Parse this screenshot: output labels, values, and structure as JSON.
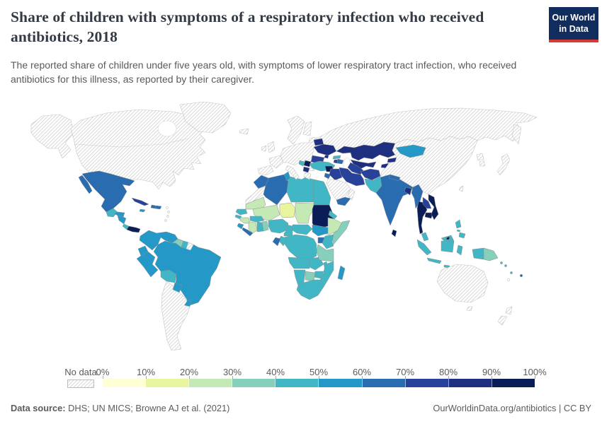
{
  "header": {
    "title": "Share of children with symptoms of a respiratory infection who received antibiotics, 2018",
    "subtitle": "The reported share of children under five years old, with symptoms of lower respiratory tract infection, who received antibiotics for this illness, as reported by their caregiver."
  },
  "logo": {
    "line1": "Our World",
    "line2": "in Data",
    "bg_color": "#102d5e",
    "stripe_color": "#d73a34"
  },
  "legend": {
    "no_data_label": "No data",
    "tick_labels": [
      "0%",
      "10%",
      "20%",
      "30%",
      "40%",
      "50%",
      "60%",
      "70%",
      "80%",
      "90%",
      "100%"
    ]
  },
  "footer": {
    "source_label": "Data source:",
    "source_text": " DHS; UN MICS; Browne AJ et al. (2021)",
    "right_text": "OurWorldinData.org/antibiotics | CC BY"
  },
  "map": {
    "scale_colors": [
      "#ffffd6",
      "#e8f59e",
      "#c5e9b4",
      "#86cfbb",
      "#41b6c4",
      "#2498c7",
      "#2a6cb0",
      "#28419b",
      "#1d2f7e",
      "#0b1d57"
    ],
    "hatch_color": "#d2d2d2",
    "border_color": "#8f8f8f"
  },
  "chart_data": {
    "type": "heatmap",
    "map_type": "world-choropleth",
    "title": "Share of children with symptoms of a respiratory infection who received antibiotics, 2018",
    "unit": "%",
    "bins": [
      "0-10%",
      "10-20%",
      "20-30%",
      "30-40%",
      "40-50%",
      "50-60%",
      "60-70%",
      "70-80%",
      "80-90%",
      "90-100%"
    ],
    "bin_note": "bin is an index into bins / scale_colors; null = No data (hatched)",
    "countries": [
      {
        "id": "mexico",
        "name": "Mexico",
        "bin": 6
      },
      {
        "id": "guatemala",
        "name": "Guatemala",
        "bin": 4
      },
      {
        "id": "honduras",
        "name": "Honduras",
        "bin": 5
      },
      {
        "id": "nicaragua",
        "name": "Nicaragua",
        "bin": 5
      },
      {
        "id": "costa-rica",
        "name": "Costa Rica",
        "bin": 4
      },
      {
        "id": "panama",
        "name": "Panama",
        "bin": 9
      },
      {
        "id": "cuba",
        "name": "Cuba",
        "bin": 7
      },
      {
        "id": "jamaica",
        "name": "Jamaica",
        "bin": 5
      },
      {
        "id": "haiti",
        "name": "Haiti",
        "bin": 6
      },
      {
        "id": "dominican-republic",
        "name": "Dominican Republic",
        "bin": 6
      },
      {
        "id": "colombia",
        "name": "Colombia",
        "bin": 5
      },
      {
        "id": "venezuela",
        "name": "Venezuela",
        "bin": 5
      },
      {
        "id": "guyana",
        "name": "Guyana",
        "bin": 3
      },
      {
        "id": "suriname",
        "name": "Suriname",
        "bin": 4
      },
      {
        "id": "ecuador",
        "name": "Ecuador",
        "bin": 5
      },
      {
        "id": "peru",
        "name": "Peru",
        "bin": 5
      },
      {
        "id": "brazil",
        "name": "Brazil",
        "bin": 5
      },
      {
        "id": "bolivia",
        "name": "Bolivia",
        "bin": 4
      },
      {
        "id": "paraguay",
        "name": "Paraguay",
        "bin": 5
      },
      {
        "id": "uruguay",
        "name": "Uruguay",
        "bin": 5
      },
      {
        "id": "morocco",
        "name": "Morocco",
        "bin": 6
      },
      {
        "id": "algeria",
        "name": "Algeria",
        "bin": 6
      },
      {
        "id": "tunisia",
        "name": "Tunisia",
        "bin": 5
      },
      {
        "id": "libya",
        "name": "Libya",
        "bin": 4
      },
      {
        "id": "egypt",
        "name": "Egypt",
        "bin": 4
      },
      {
        "id": "mauritania",
        "name": "Mauritania",
        "bin": 2
      },
      {
        "id": "mali",
        "name": "Mali",
        "bin": 2
      },
      {
        "id": "niger",
        "name": "Niger",
        "bin": 1
      },
      {
        "id": "chad",
        "name": "Chad",
        "bin": 2
      },
      {
        "id": "sudan",
        "name": "Sudan",
        "bin": 9
      },
      {
        "id": "eritrea",
        "name": "Eritrea",
        "bin": 4
      },
      {
        "id": "ethiopia",
        "name": "Ethiopia",
        "bin": 2
      },
      {
        "id": "somalia",
        "name": "Somalia",
        "bin": 3
      },
      {
        "id": "senegal",
        "name": "Senegal",
        "bin": 4
      },
      {
        "id": "guinea-bissau",
        "name": "Guinea-Bissau",
        "bin": 4
      },
      {
        "id": "guinea",
        "name": "Guinea",
        "bin": 2
      },
      {
        "id": "sierra-leone",
        "name": "Sierra Leone",
        "bin": 5
      },
      {
        "id": "liberia",
        "name": "Liberia",
        "bin": 6
      },
      {
        "id": "cote-divoire",
        "name": "Cote d'Ivoire",
        "bin": 2
      },
      {
        "id": "ghana",
        "name": "Ghana",
        "bin": 4
      },
      {
        "id": "togo-benin",
        "name": "Togo and Benin",
        "bin": 3
      },
      {
        "id": "burkina-faso",
        "name": "Burkina Faso",
        "bin": 4
      },
      {
        "id": "nigeria",
        "name": "Nigeria",
        "bin": 4
      },
      {
        "id": "cameroon",
        "name": "Cameroon",
        "bin": 4
      },
      {
        "id": "central-african-republic",
        "name": "Central African Republic",
        "bin": 4
      },
      {
        "id": "south-sudan",
        "name": "South Sudan",
        "bin": 5
      },
      {
        "id": "uganda",
        "name": "Uganda",
        "bin": 6
      },
      {
        "id": "kenya",
        "name": "Kenya",
        "bin": 4
      },
      {
        "id": "dr-congo",
        "name": "Democratic Republic of Congo",
        "bin": 4
      },
      {
        "id": "congo",
        "name": "Congo",
        "bin": 4
      },
      {
        "id": "gabon",
        "name": "Gabon",
        "bin": 6
      },
      {
        "id": "angola",
        "name": "Angola",
        "bin": 4
      },
      {
        "id": "zambia",
        "name": "Zambia",
        "bin": 4
      },
      {
        "id": "tanzania",
        "name": "Tanzania",
        "bin": 3
      },
      {
        "id": "malawi",
        "name": "Malawi",
        "bin": 4
      },
      {
        "id": "mozambique",
        "name": "Mozambique",
        "bin": 4
      },
      {
        "id": "zimbabwe",
        "name": "Zimbabwe",
        "bin": 4
      },
      {
        "id": "botswana",
        "name": "Botswana",
        "bin": 3
      },
      {
        "id": "namibia",
        "name": "Namibia",
        "bin": 4
      },
      {
        "id": "south-africa",
        "name": "South Africa",
        "bin": 4
      },
      {
        "id": "madagascar",
        "name": "Madagascar",
        "bin": 5
      },
      {
        "id": "belarus",
        "name": "Belarus",
        "bin": 8
      },
      {
        "id": "ukraine",
        "name": "Ukraine",
        "bin": 8
      },
      {
        "id": "moldova",
        "name": "Moldova",
        "bin": 8
      },
      {
        "id": "romania",
        "name": "Romania",
        "bin": 7
      },
      {
        "id": "serbia",
        "name": "Serbia",
        "bin": 9
      },
      {
        "id": "bosnia",
        "name": "Bosnia and Herzegovina",
        "bin": 4
      },
      {
        "id": "albania-macedonia",
        "name": "Albania and North Macedonia",
        "bin": 8
      },
      {
        "id": "turkey",
        "name": "Turkey",
        "bin": 4
      },
      {
        "id": "georgia",
        "name": "Georgia",
        "bin": 4
      },
      {
        "id": "armenia",
        "name": "Armenia",
        "bin": 7
      },
      {
        "id": "azerbaijan",
        "name": "Azerbaijan",
        "bin": 6
      },
      {
        "id": "syria",
        "name": "Syria",
        "bin": 9
      },
      {
        "id": "jordan",
        "name": "Jordan",
        "bin": 6
      },
      {
        "id": "iraq",
        "name": "Iraq",
        "bin": 7
      },
      {
        "id": "iran",
        "name": "Iran",
        "bin": 7
      },
      {
        "id": "yemen",
        "name": "Yemen",
        "bin": 6
      },
      {
        "id": "kazakhstan",
        "name": "Kazakhstan",
        "bin": 8
      },
      {
        "id": "uzbekistan",
        "name": "Uzbekistan",
        "bin": 8
      },
      {
        "id": "turkmenistan",
        "name": "Turkmenistan",
        "bin": 7
      },
      {
        "id": "kyrgyzstan",
        "name": "Kyrgyzstan",
        "bin": 8
      },
      {
        "id": "tajikistan",
        "name": "Tajikistan",
        "bin": 8
      },
      {
        "id": "afghanistan",
        "name": "Afghanistan",
        "bin": 7
      },
      {
        "id": "pakistan",
        "name": "Pakistan",
        "bin": 4
      },
      {
        "id": "india",
        "name": "India",
        "bin": 6
      },
      {
        "id": "nepal",
        "name": "Nepal",
        "bin": 6
      },
      {
        "id": "bangladesh",
        "name": "Bangladesh",
        "bin": 8
      },
      {
        "id": "sri-lanka",
        "name": "Sri Lanka",
        "bin": 9
      },
      {
        "id": "myanmar",
        "name": "Myanmar",
        "bin": 6
      },
      {
        "id": "thailand",
        "name": "Thailand",
        "bin": 9
      },
      {
        "id": "laos",
        "name": "Laos",
        "bin": 7
      },
      {
        "id": "cambodia",
        "name": "Cambodia",
        "bin": 9
      },
      {
        "id": "vietnam",
        "name": "Vietnam",
        "bin": 9
      },
      {
        "id": "malaysia",
        "name": "Malaysia",
        "bin": 4
      },
      {
        "id": "brunei",
        "name": "Brunei",
        "bin": 9
      },
      {
        "id": "indonesia",
        "name": "Indonesia",
        "bin": 4
      },
      {
        "id": "papua-new-guinea",
        "name": "Papua New Guinea",
        "bin": 3
      },
      {
        "id": "philippines",
        "name": "Philippines",
        "bin": 4
      },
      {
        "id": "timor-leste",
        "name": "Timor-Leste",
        "bin": 4
      },
      {
        "id": "mongolia",
        "name": "Mongolia",
        "bin": 5
      },
      {
        "id": "solomon-islands",
        "name": "Solomon Islands",
        "bin": 4
      },
      {
        "id": "vanuatu",
        "name": "Vanuatu",
        "bin": 4
      },
      {
        "id": "fiji",
        "name": "Fiji",
        "bin": 6
      },
      {
        "id": "usa-canada",
        "name": "United States and Canada",
        "bin": null
      },
      {
        "id": "greenland",
        "name": "Greenland",
        "bin": null
      },
      {
        "id": "argentina-chile",
        "name": "Argentina and Chile",
        "bin": null
      },
      {
        "id": "french-guiana",
        "name": "French Guiana",
        "bin": null
      },
      {
        "id": "lesser-antilles",
        "name": "Lesser Antilles",
        "bin": null
      },
      {
        "id": "western-sahara",
        "name": "Western Sahara",
        "bin": null
      },
      {
        "id": "saudi-arabia",
        "name": "Saudi Arabia",
        "bin": null
      },
      {
        "id": "oman",
        "name": "Oman",
        "bin": null
      },
      {
        "id": "iberia",
        "name": "Spain and Portugal",
        "bin": null
      },
      {
        "id": "france",
        "name": "France",
        "bin": null
      },
      {
        "id": "united-kingdom",
        "name": "United Kingdom",
        "bin": null
      },
      {
        "id": "ireland",
        "name": "Ireland",
        "bin": null
      },
      {
        "id": "iceland",
        "name": "Iceland",
        "bin": null
      },
      {
        "id": "scandinavia",
        "name": "Norway and Sweden",
        "bin": null
      },
      {
        "id": "finland",
        "name": "Finland",
        "bin": null
      },
      {
        "id": "baltics",
        "name": "Baltic states",
        "bin": null
      },
      {
        "id": "central-europe",
        "name": "Central Europe",
        "bin": null
      },
      {
        "id": "italy",
        "name": "Italy",
        "bin": null
      },
      {
        "id": "greece",
        "name": "Greece",
        "bin": null
      },
      {
        "id": "bulgaria",
        "name": "Bulgaria",
        "bin": null
      },
      {
        "id": "russia",
        "name": "Russia",
        "bin": null
      },
      {
        "id": "china",
        "name": "China",
        "bin": null
      },
      {
        "id": "north-korea",
        "name": "North Korea",
        "bin": null
      },
      {
        "id": "south-korea",
        "name": "South Korea",
        "bin": null
      },
      {
        "id": "japan",
        "name": "Japan",
        "bin": null
      },
      {
        "id": "taiwan",
        "name": "Taiwan",
        "bin": null
      },
      {
        "id": "australia",
        "name": "Australia",
        "bin": null
      },
      {
        "id": "new-zealand",
        "name": "New Zealand",
        "bin": null
      },
      {
        "id": "new-caledonia",
        "name": "New Caledonia",
        "bin": null
      }
    ]
  }
}
